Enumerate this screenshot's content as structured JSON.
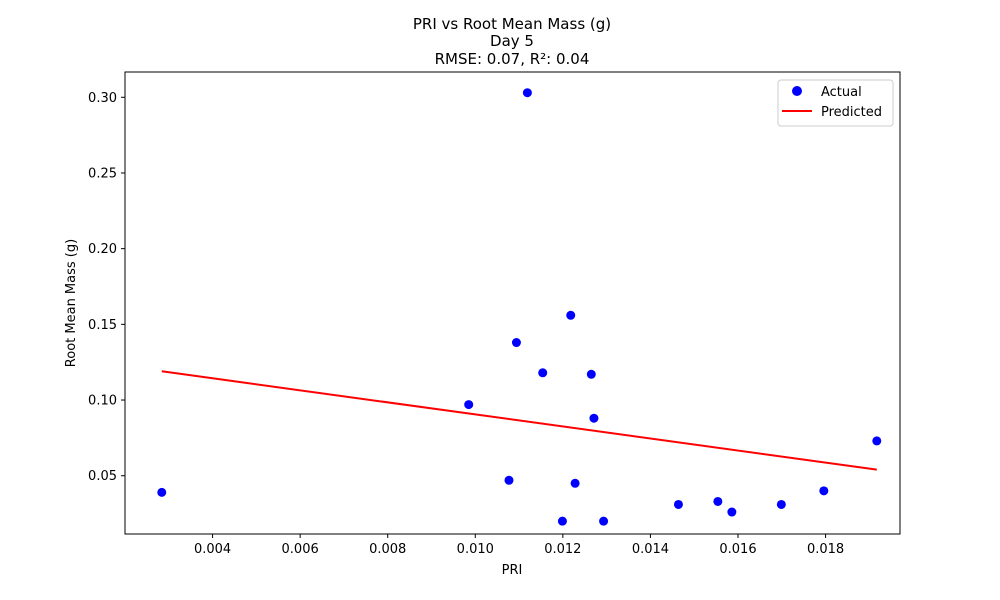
{
  "chart_data": {
    "type": "scatter",
    "title": "PRI vs Root Mean Mass (g)",
    "subtitle": "Day 5",
    "metrics": "RMSE: 0.07, R²: 0.04",
    "xlabel": "PRI",
    "ylabel": "Root Mean Mass (g)",
    "xlim": [
      0.002,
      0.0197
    ],
    "ylim": [
      0.0115,
      0.3167
    ],
    "xticks": [
      "0.004",
      "0.006",
      "0.008",
      "0.010",
      "0.012",
      "0.014",
      "0.016",
      "0.018"
    ],
    "yticks": [
      "0.05",
      "0.10",
      "0.15",
      "0.20",
      "0.25",
      "0.30"
    ],
    "legend_position": "top-right",
    "grid": false,
    "series": [
      {
        "name": "Actual",
        "kind": "scatter",
        "color": "#0000ff",
        "points": [
          [
            0.00284,
            0.039
          ],
          [
            0.00985,
            0.097
          ],
          [
            0.01077,
            0.047
          ],
          [
            0.01094,
            0.138
          ],
          [
            0.01119,
            0.303
          ],
          [
            0.01154,
            0.118
          ],
          [
            0.01199,
            0.02
          ],
          [
            0.01218,
            0.156
          ],
          [
            0.01228,
            0.045
          ],
          [
            0.01265,
            0.117
          ],
          [
            0.01271,
            0.088
          ],
          [
            0.01293,
            0.02
          ],
          [
            0.01464,
            0.031
          ],
          [
            0.01554,
            0.033
          ],
          [
            0.01586,
            0.026
          ],
          [
            0.01699,
            0.031
          ],
          [
            0.01796,
            0.04
          ],
          [
            0.01917,
            0.073
          ]
        ]
      },
      {
        "name": "Predicted",
        "kind": "line",
        "color": "#ff0000",
        "points": [
          [
            0.00284,
            0.119
          ],
          [
            0.01917,
            0.054
          ]
        ]
      }
    ]
  }
}
